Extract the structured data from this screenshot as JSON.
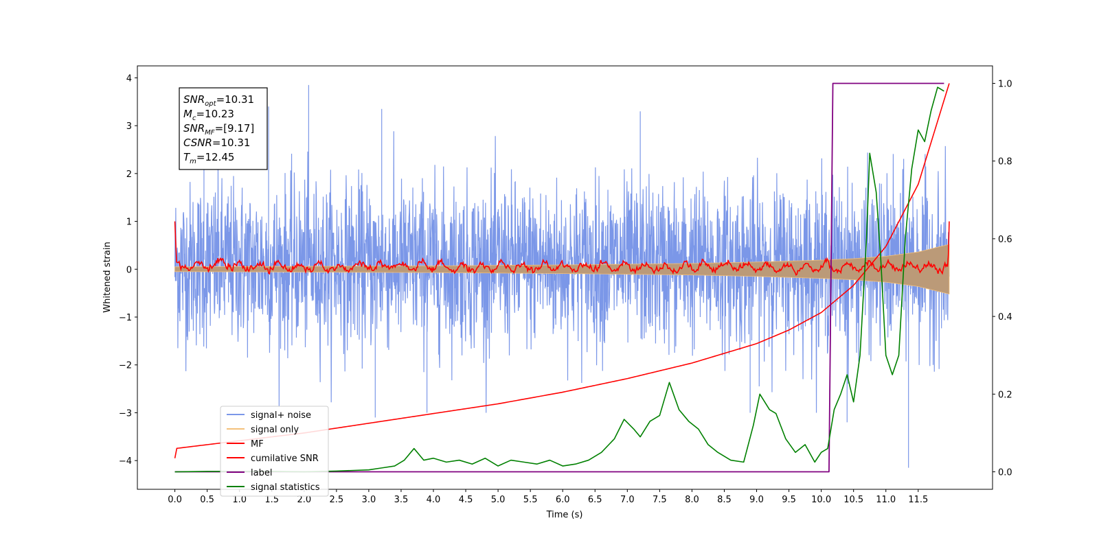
{
  "chart_data": {
    "type": "line",
    "title": "",
    "xlabel": "Time (s)",
    "ylabel": "Whitened strain",
    "y2label": "",
    "xlim": [
      -0.58,
      12.65
    ],
    "ylim": [
      -4.6,
      4.25
    ],
    "y2lim": [
      -0.045,
      1.045
    ],
    "x_ticks": [
      0,
      0.5,
      1,
      1.5,
      2,
      2.5,
      3,
      3.5,
      4,
      4.5,
      5,
      5.5,
      6,
      6.5,
      7,
      7.5,
      8,
      8.5,
      9,
      9.5,
      10,
      10.5,
      11,
      11.5
    ],
    "x_tick_labels": [
      "0.0",
      "0.5",
      "1.0",
      "1.5",
      "2.0",
      "2.5",
      "3.0",
      "3.5",
      "4.0",
      "4.5",
      "5.0",
      "5.5",
      "6.0",
      "6.5",
      "7.0",
      "7.5",
      "8.0",
      "8.5",
      "9.0",
      "9.5",
      "10.0",
      "10.5",
      "11.0",
      "11.5"
    ],
    "y_ticks": [
      -4,
      -3,
      -2,
      -1,
      0,
      1,
      2,
      3,
      4
    ],
    "y_tick_labels": [
      "−4",
      "−3",
      "−2",
      "−1",
      "0",
      "1",
      "2",
      "3",
      "4"
    ],
    "y2_ticks": [
      0.0,
      0.2,
      0.4,
      0.6,
      0.8,
      1.0
    ],
    "y2_tick_labels": [
      "0.0",
      "0.2",
      "0.4",
      "0.6",
      "0.8",
      "1.0"
    ],
    "grid": false,
    "legend_position": "lower-left",
    "annotation": {
      "lines": [
        {
          "base": "SNR",
          "sub": "opt",
          "value": "=10.31"
        },
        {
          "base": "M",
          "sub": "c",
          "value": "=10.23"
        },
        {
          "base": "SNR",
          "sub": "MF",
          "value": "=[9.17]"
        },
        {
          "base": "CSNR",
          "sub": "",
          "value": "=10.31"
        },
        {
          "base": "T",
          "sub": "m",
          "value": "=12.45"
        }
      ]
    },
    "series": [
      {
        "name": "signal+ noise",
        "color": "#7b97e8",
        "axis": "left",
        "style": "noise",
        "x_range": [
          0,
          11.98
        ],
        "typical_range": [
          -1.9,
          2.1
        ],
        "min": -4.15,
        "max": 3.85
      },
      {
        "name": "signal only",
        "color": "#f4c07a",
        "axis": "left",
        "style": "chirp-envelope",
        "x": [
          0,
          2,
          4,
          6,
          8,
          9,
          10,
          10.5,
          11,
          11.5,
          11.98
        ],
        "amplitude": [
          0.05,
          0.06,
          0.07,
          0.09,
          0.12,
          0.15,
          0.19,
          0.22,
          0.27,
          0.36,
          0.52
        ]
      },
      {
        "name": "MF",
        "color": "#ff0000",
        "axis": "left",
        "style": "oscillating",
        "x_range": [
          0,
          11.98
        ],
        "start_value": 1.0,
        "end_value": 1.0,
        "typical_range": [
          -0.15,
          0.3
        ]
      },
      {
        "name": "cumilative SNR",
        "color": "#ff0000",
        "axis": "right",
        "x": [
          0,
          0.01,
          1,
          2,
          3,
          4,
          5,
          6,
          7,
          8,
          9,
          9.5,
          10,
          10.5,
          11,
          11.5,
          11.98
        ],
        "values": [
          0.035,
          0.06,
          0.08,
          0.1,
          0.125,
          0.15,
          0.175,
          0.205,
          0.24,
          0.28,
          0.33,
          0.365,
          0.41,
          0.48,
          0.58,
          0.74,
          1.0
        ]
      },
      {
        "name": "label",
        "color": "#800080",
        "axis": "right",
        "x": [
          0,
          10.12,
          10.18,
          11.9
        ],
        "values": [
          0,
          0,
          1,
          1
        ]
      },
      {
        "name": "signal statistics",
        "color": "#008000",
        "axis": "right",
        "x": [
          0,
          0.5,
          1,
          1.5,
          2,
          2.5,
          3,
          3.2,
          3.4,
          3.55,
          3.7,
          3.85,
          4,
          4.2,
          4.4,
          4.6,
          4.8,
          5,
          5.2,
          5.4,
          5.6,
          5.8,
          6,
          6.2,
          6.4,
          6.6,
          6.8,
          6.95,
          7.1,
          7.2,
          7.35,
          7.5,
          7.65,
          7.8,
          7.95,
          8.1,
          8.25,
          8.4,
          8.6,
          8.8,
          8.95,
          9.05,
          9.2,
          9.3,
          9.45,
          9.6,
          9.75,
          9.9,
          10.0,
          10.1,
          10.2,
          10.3,
          10.4,
          10.5,
          10.6,
          10.7,
          10.75,
          10.85,
          10.92,
          11.0,
          11.1,
          11.2,
          11.3,
          11.4,
          11.5,
          11.6,
          11.7,
          11.8,
          11.9
        ],
        "values": [
          0,
          0.001,
          0.001,
          0.001,
          0.0,
          0.002,
          0.005,
          0.01,
          0.015,
          0.03,
          0.06,
          0.03,
          0.035,
          0.025,
          0.03,
          0.02,
          0.035,
          0.015,
          0.03,
          0.025,
          0.02,
          0.03,
          0.015,
          0.02,
          0.03,
          0.05,
          0.085,
          0.135,
          0.11,
          0.09,
          0.13,
          0.145,
          0.23,
          0.16,
          0.13,
          0.11,
          0.07,
          0.05,
          0.03,
          0.025,
          0.12,
          0.2,
          0.16,
          0.15,
          0.085,
          0.05,
          0.07,
          0.025,
          0.05,
          0.06,
          0.16,
          0.2,
          0.25,
          0.18,
          0.3,
          0.6,
          0.82,
          0.72,
          0.55,
          0.3,
          0.25,
          0.3,
          0.6,
          0.78,
          0.88,
          0.85,
          0.93,
          0.99,
          0.98
        ]
      }
    ]
  }
}
